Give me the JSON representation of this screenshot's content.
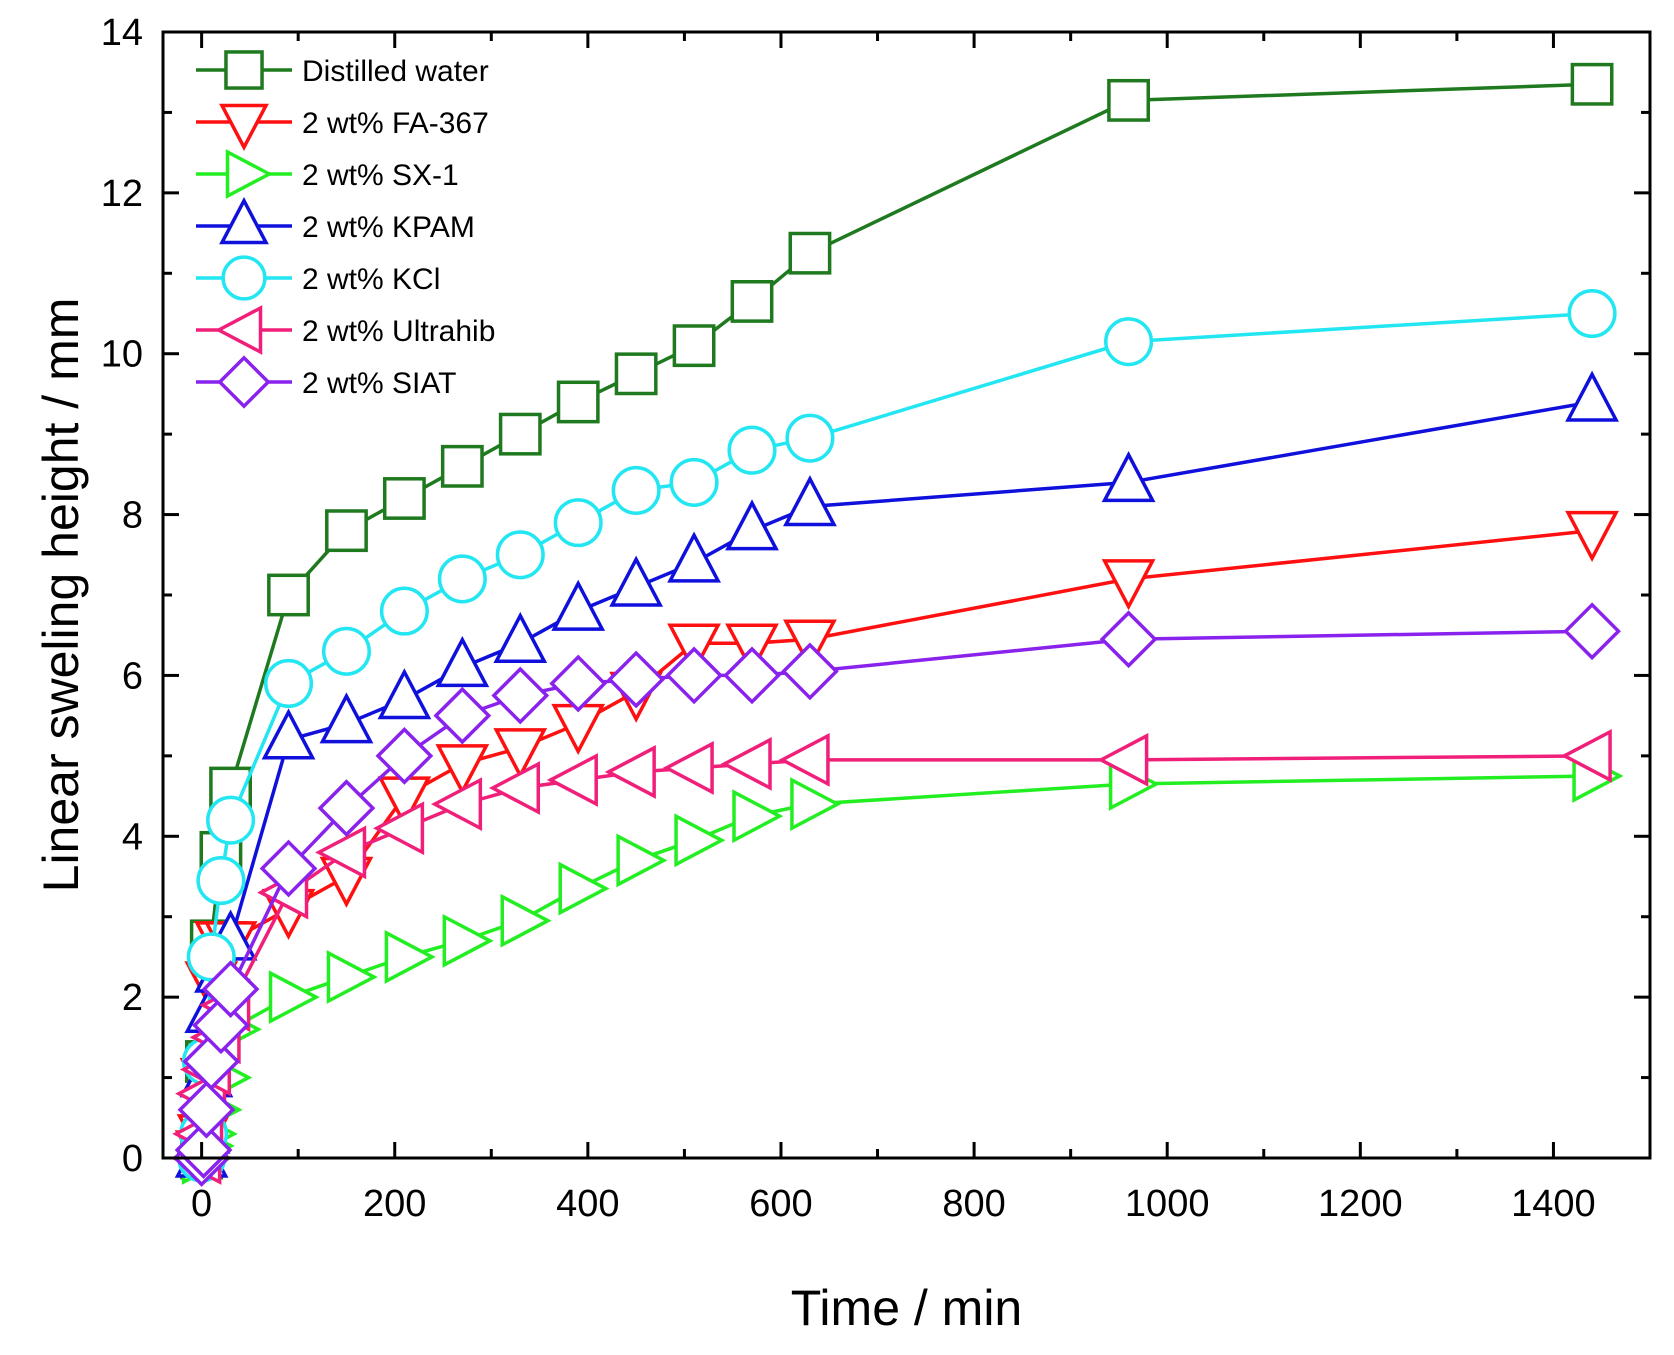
{
  "chart_data": {
    "type": "line",
    "title": "",
    "xlabel": "Time / min",
    "ylabel": "Linear sweling height / mm",
    "xlim": [
      -40,
      1500
    ],
    "ylim": [
      0,
      14
    ],
    "xticks": [
      0,
      200,
      400,
      600,
      800,
      1000,
      1200,
      1400
    ],
    "yticks": [
      0,
      2,
      4,
      6,
      8,
      10,
      12,
      14
    ],
    "grid": false,
    "legend_position": "top-left",
    "series": [
      {
        "name": "Distilled water",
        "color": "#1f7a1f",
        "marker": "square",
        "x": [
          0,
          2,
          5,
          10,
          20,
          30,
          90,
          150,
          210,
          270,
          330,
          390,
          450,
          510,
          570,
          630,
          960,
          1440
        ],
        "y": [
          0,
          0.3,
          1.2,
          2.7,
          3.8,
          4.6,
          7.0,
          7.8,
          8.2,
          8.6,
          9.0,
          9.4,
          9.75,
          10.1,
          10.65,
          11.25,
          13.15,
          13.35
        ]
      },
      {
        "name": "2 wt% FA-367",
        "color": "#ff1010",
        "marker": "triangle-down",
        "x": [
          0,
          2,
          5,
          10,
          20,
          30,
          90,
          150,
          210,
          270,
          330,
          390,
          450,
          510,
          570,
          630,
          960,
          1440
        ],
        "y": [
          0.1,
          0.3,
          1.0,
          2.2,
          2.7,
          2.7,
          3.1,
          3.5,
          4.5,
          4.9,
          5.1,
          5.4,
          5.8,
          6.4,
          6.4,
          6.45,
          7.2,
          7.8
        ]
      },
      {
        "name": "2 wt% SX-1",
        "color": "#22ee22",
        "marker": "triangle-right",
        "x": [
          0,
          2,
          5,
          10,
          20,
          30,
          90,
          150,
          210,
          270,
          330,
          390,
          450,
          510,
          570,
          630,
          960,
          1440
        ],
        "y": [
          0,
          0.15,
          0.3,
          0.6,
          1.0,
          1.6,
          2.0,
          2.25,
          2.5,
          2.7,
          2.95,
          3.35,
          3.7,
          3.95,
          4.25,
          4.4,
          4.65,
          4.75
        ]
      },
      {
        "name": "2 wt% KPAM",
        "color": "#1010dd",
        "marker": "triangle-up",
        "x": [
          0,
          2,
          5,
          10,
          20,
          30,
          90,
          150,
          210,
          270,
          330,
          390,
          450,
          510,
          570,
          630,
          960,
          1440
        ],
        "y": [
          0,
          0.3,
          1.0,
          1.8,
          2.3,
          2.7,
          5.2,
          5.4,
          5.7,
          6.1,
          6.4,
          6.8,
          7.1,
          7.4,
          7.8,
          8.1,
          8.4,
          9.4
        ]
      },
      {
        "name": "2 wt% KCl",
        "color": "#22e6f2",
        "marker": "circle",
        "x": [
          0,
          2,
          5,
          10,
          20,
          30,
          90,
          150,
          210,
          270,
          330,
          390,
          450,
          510,
          570,
          630,
          960,
          1440
        ],
        "y": [
          0,
          0.3,
          1.2,
          2.5,
          3.45,
          4.2,
          5.9,
          6.3,
          6.8,
          7.2,
          7.5,
          7.9,
          8.3,
          8.4,
          8.8,
          8.95,
          10.15,
          10.5
        ]
      },
      {
        "name": "2 wt% Ultrahib",
        "color": "#f0207a",
        "marker": "triangle-left",
        "x": [
          0,
          2,
          5,
          10,
          20,
          30,
          90,
          150,
          210,
          270,
          330,
          390,
          450,
          510,
          570,
          630,
          960,
          1440
        ],
        "y": [
          0,
          0.3,
          0.8,
          1.1,
          1.5,
          1.9,
          3.3,
          3.8,
          4.1,
          4.4,
          4.6,
          4.7,
          4.8,
          4.85,
          4.9,
          4.95,
          4.95,
          5.0
        ]
      },
      {
        "name": "2 wt% SIAT",
        "color": "#8a22ee",
        "marker": "diamond",
        "x": [
          0,
          2,
          5,
          10,
          20,
          30,
          90,
          150,
          210,
          270,
          330,
          390,
          450,
          510,
          570,
          630,
          960,
          1440
        ],
        "y": [
          0,
          0.1,
          0.6,
          1.2,
          1.65,
          2.1,
          3.6,
          4.35,
          5.0,
          5.5,
          5.75,
          5.9,
          5.95,
          6.0,
          6.0,
          6.05,
          6.45,
          6.55
        ]
      }
    ]
  }
}
